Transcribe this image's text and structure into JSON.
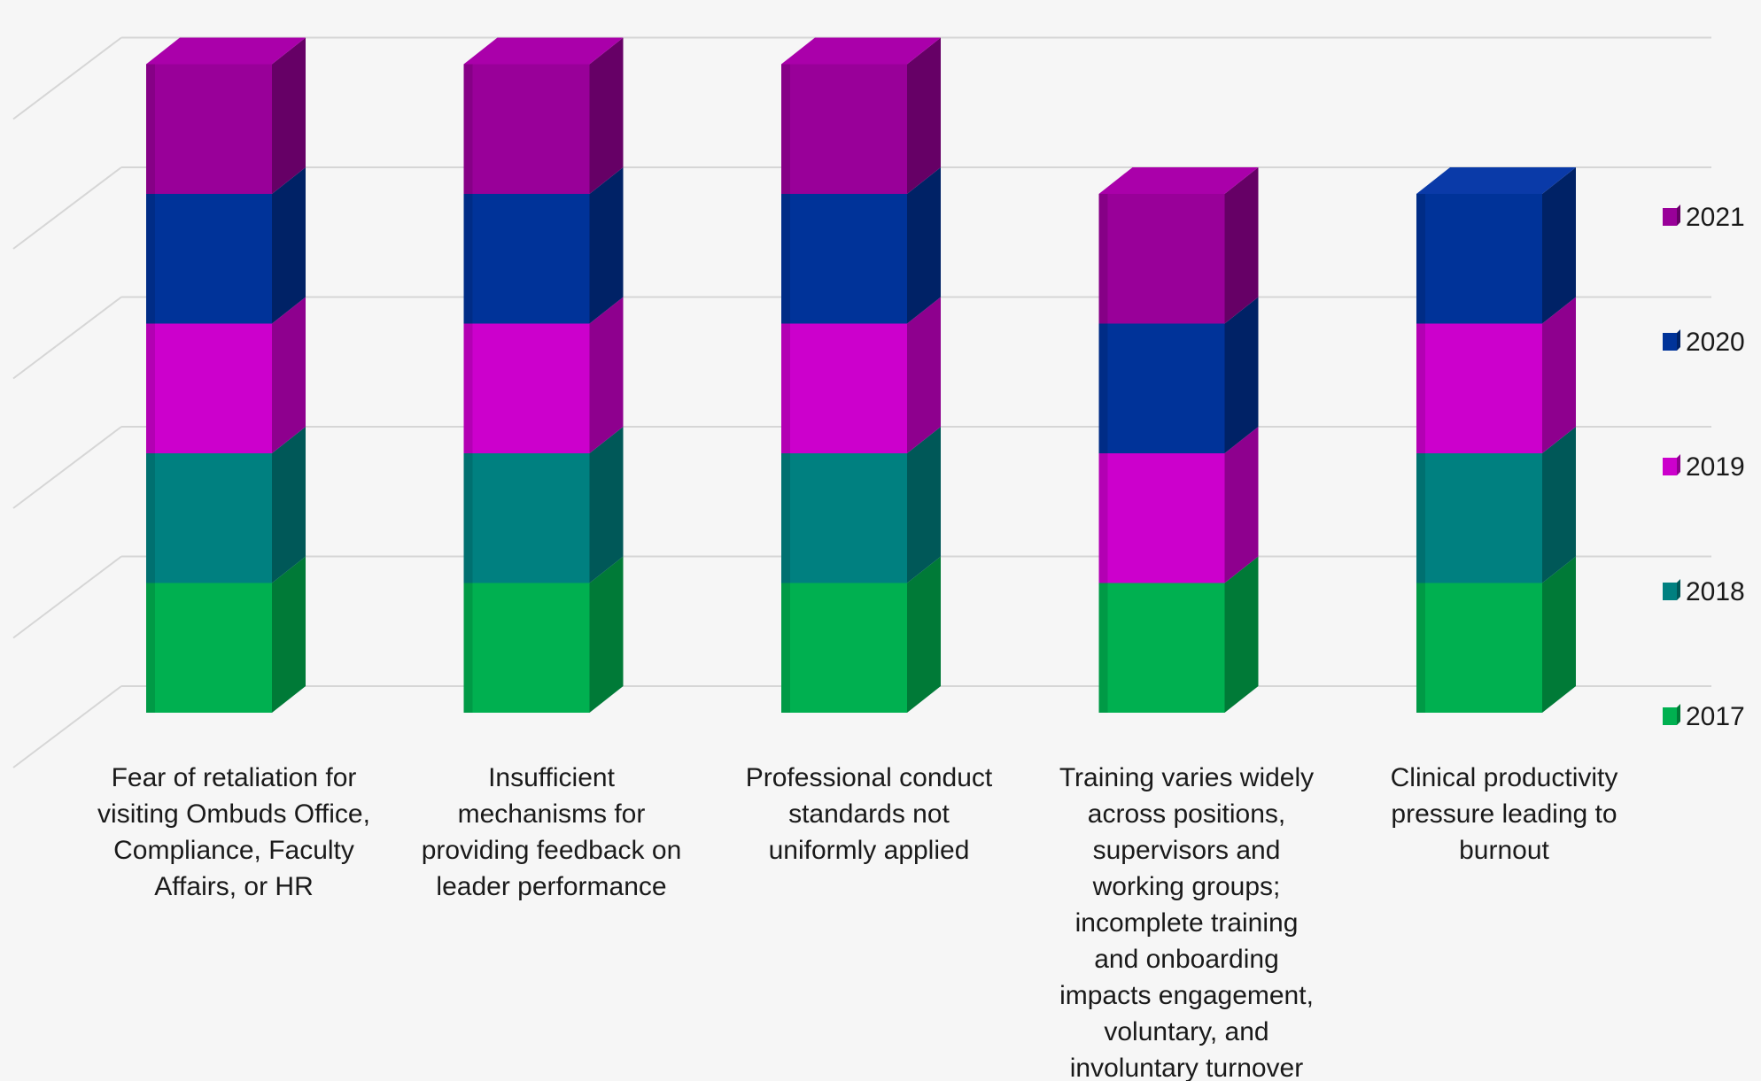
{
  "chart_data": {
    "type": "bar",
    "stacked": true,
    "three_d": true,
    "grid": true,
    "legend_position": "right",
    "title": "",
    "xlabel": "",
    "ylabel": "",
    "ylim": [
      0,
      5
    ],
    "categories": [
      "Fear of retaliation for visiting Ombuds Office, Compliance, Faculty Affairs, or HR",
      "Insufficient mechanisms for providing feedback on leader performance",
      "Professional conduct standards not uniformly applied",
      "Training varies widely across positions, supervisors and working groups; incomplete training and onboarding impacts engagement, voluntary, and involuntary turnover",
      "Clinical productivity pressure leading to burnout"
    ],
    "category_label_lines": [
      [
        "Fear of retaliation for",
        "visiting Ombuds Office,",
        "Compliance, Faculty",
        "Affairs, or HR"
      ],
      [
        "Insufficient",
        "mechanisms for",
        "providing feedback on",
        "leader performance"
      ],
      [
        "Professional conduct",
        "standards not",
        "uniformly applied"
      ],
      [
        "Training varies widely",
        "across positions,",
        "supervisors and",
        "working groups;",
        "incomplete training",
        "and onboarding",
        "impacts engagement,",
        "voluntary, and",
        "involuntary turnover"
      ],
      [
        "Clinical productivity",
        "pressure leading to",
        "burnout"
      ]
    ],
    "series": [
      {
        "name": "2017",
        "values": [
          1,
          1,
          1,
          1,
          1
        ],
        "color": "#00b050",
        "side_color": "#007a37",
        "top_color": "#00d060"
      },
      {
        "name": "2018",
        "values": [
          1,
          1,
          1,
          0,
          1
        ],
        "color": "#008080",
        "side_color": "#005858",
        "top_color": "#00a0a0"
      },
      {
        "name": "2019",
        "values": [
          1,
          1,
          1,
          1,
          1
        ],
        "color": "#cc00cc",
        "side_color": "#8e008e",
        "top_color": "#e000e0"
      },
      {
        "name": "2020",
        "values": [
          1,
          1,
          1,
          1,
          1
        ],
        "color": "#003399",
        "side_color": "#002266",
        "top_color": "#0a3aa8"
      },
      {
        "name": "2021",
        "values": [
          1,
          1,
          1,
          1,
          0
        ],
        "color": "#990099",
        "side_color": "#660066",
        "top_color": "#aa00aa"
      }
    ]
  }
}
